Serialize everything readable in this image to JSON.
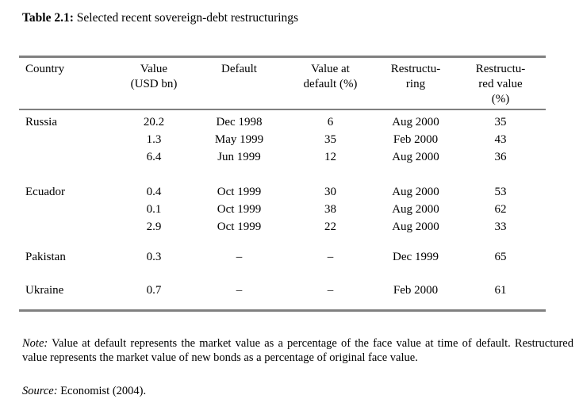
{
  "caption": {
    "label": "Table 2.1:",
    "text": " Selected recent sovereign-debt restructurings"
  },
  "colors": {
    "rule_gray": "#808080",
    "text": "#000000",
    "background": "#ffffff"
  },
  "table": {
    "header": [
      {
        "lines": [
          "Country"
        ]
      },
      {
        "lines": [
          "Value",
          "(USD bn)"
        ]
      },
      {
        "lines": [
          "Default"
        ]
      },
      {
        "lines": [
          "Value at",
          "default (%)"
        ]
      },
      {
        "lines": [
          "Restructu-",
          "ring"
        ]
      },
      {
        "lines": [
          "Restructu-",
          "red value",
          "(%)"
        ]
      }
    ],
    "rows": [
      {
        "cells": [
          "Russia",
          "20.2",
          "Dec 1998",
          "6",
          "Aug 2000",
          "35"
        ]
      },
      {
        "cells": [
          "",
          "1.3",
          "May 1999",
          "35",
          "Feb 2000",
          "43"
        ]
      },
      {
        "cells": [
          "",
          "6.4",
          "Jun 1999",
          "12",
          "Aug 2000",
          "36"
        ]
      },
      {
        "cells": [
          "Ecuador",
          "0.4",
          "Oct 1999",
          "30",
          "Aug 2000",
          "53"
        ]
      },
      {
        "cells": [
          "",
          "0.1",
          "Oct 1999",
          "38",
          "Aug 2000",
          "62"
        ]
      },
      {
        "cells": [
          "",
          "2.9",
          "Oct 1999",
          "22",
          "Aug 2000",
          "33"
        ]
      },
      {
        "cells": [
          "Pakistan",
          "0.3",
          "–",
          "–",
          "Dec 1999",
          "65"
        ]
      },
      {
        "cells": [
          "Ukraine",
          "0.7",
          "–",
          "–",
          "Feb 2000",
          "61"
        ]
      }
    ]
  },
  "note": {
    "label": "Note:",
    "text": " Value at default represents the market value as a percentage of the face value at time of default. Restructured value represents the market value of new bonds as a percentage of original face value."
  },
  "source": {
    "label": "Source:",
    "text": " Economist (2004)."
  }
}
